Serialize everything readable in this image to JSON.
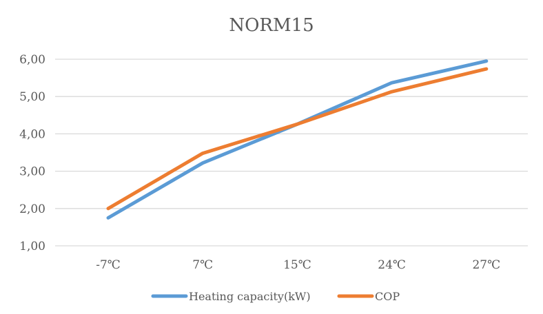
{
  "chart_data": {
    "type": "line",
    "title": "NORM15",
    "categories": [
      "-7℃",
      "7℃",
      "15℃",
      "24℃",
      "27℃"
    ],
    "series": [
      {
        "name": "Heating capacity(kW)",
        "color": "#5B9BD5",
        "values": [
          1.75,
          3.22,
          4.26,
          5.37,
          5.95
        ]
      },
      {
        "name": "COP",
        "color": "#ED7D31",
        "values": [
          2.0,
          3.48,
          4.26,
          5.13,
          5.74
        ]
      }
    ],
    "ylim": [
      1,
      6
    ],
    "yticks": [
      1,
      2,
      3,
      4,
      5,
      6
    ],
    "ytick_labels": [
      "1,00",
      "2,00",
      "3,00",
      "4,00",
      "5,00",
      "6,00"
    ],
    "grid": true,
    "legend": "bottom",
    "xlabel": "",
    "ylabel": ""
  }
}
